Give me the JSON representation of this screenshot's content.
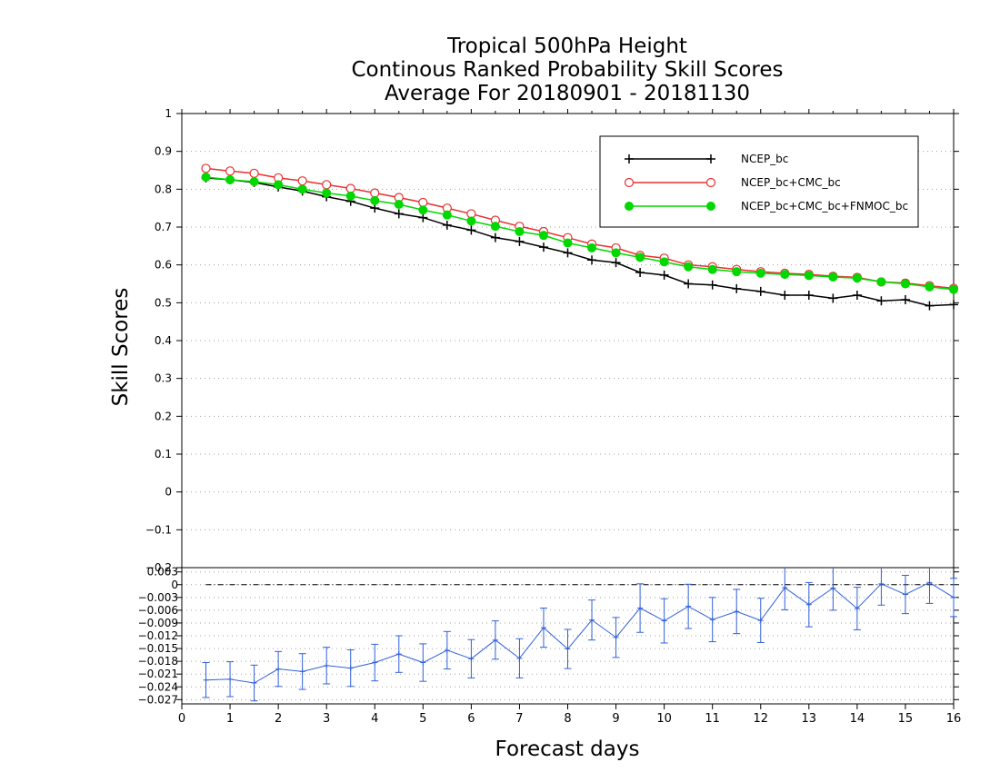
{
  "title_lines": [
    "Tropical 500hPa Height",
    "Continous Ranked Probability Skill Scores",
    "Average For 20180901 - 20181130"
  ],
  "ylabel": "Skill Scores",
  "xlabel": "Forecast days",
  "colors": {
    "NCEP_bc": "#000000",
    "NCEP_bc+CMC_bc": "#e83030",
    "NCEP_bc+CMC_bc+FNMOC_bc": "#00d800",
    "diff": "#3060d8"
  },
  "chart_data": [
    {
      "type": "line",
      "xlim": [
        0,
        16
      ],
      "ylim": [
        -0.2,
        1
      ],
      "x_ticks": [
        "0",
        "1",
        "2",
        "3",
        "4",
        "5",
        "6",
        "7",
        "8",
        "9",
        "10",
        "11",
        "12",
        "13",
        "14",
        "15",
        "16"
      ],
      "y_ticks": [
        "1",
        "0.9",
        "0.8",
        "0.7",
        "0.6",
        "0.5",
        "0.4",
        "0.3",
        "0.2",
        "0.1",
        "0",
        "-0.1",
        "-0.2"
      ],
      "grid": true,
      "legend_position": "top-right",
      "x": [
        0.5,
        1,
        1.5,
        2,
        2.5,
        3,
        3.5,
        4,
        4.5,
        5,
        5.5,
        6,
        6.5,
        7,
        7.5,
        8,
        8.5,
        9,
        9.5,
        10,
        10.5,
        11,
        11.5,
        12,
        12.5,
        13,
        13.5,
        14,
        14.5,
        15,
        15.5,
        16
      ],
      "series": [
        {
          "name": "NCEP_bc",
          "marker": "plus",
          "values": [
            0.83,
            0.825,
            0.818,
            0.806,
            0.795,
            0.78,
            0.768,
            0.75,
            0.735,
            0.725,
            0.705,
            0.692,
            0.672,
            0.662,
            0.647,
            0.632,
            0.613,
            0.606,
            0.58,
            0.573,
            0.55,
            0.547,
            0.537,
            0.53,
            0.52,
            0.52,
            0.512,
            0.52,
            0.505,
            0.508,
            0.492,
            0.495
          ]
        },
        {
          "name": "NCEP_bc+CMC_bc",
          "marker": "open-circle",
          "values": [
            0.855,
            0.848,
            0.842,
            0.83,
            0.822,
            0.812,
            0.802,
            0.79,
            0.778,
            0.765,
            0.75,
            0.735,
            0.718,
            0.702,
            0.688,
            0.672,
            0.655,
            0.645,
            0.625,
            0.618,
            0.6,
            0.595,
            0.588,
            0.582,
            0.578,
            0.575,
            0.57,
            0.567,
            0.555,
            0.552,
            0.545,
            0.538
          ]
        },
        {
          "name": "NCEP_bc+CMC_bc+FNMOC_bc",
          "marker": "filled-circle",
          "values": [
            0.832,
            0.825,
            0.82,
            0.812,
            0.8,
            0.79,
            0.782,
            0.77,
            0.76,
            0.745,
            0.732,
            0.716,
            0.702,
            0.688,
            0.678,
            0.658,
            0.645,
            0.632,
            0.62,
            0.608,
            0.595,
            0.588,
            0.582,
            0.578,
            0.575,
            0.572,
            0.568,
            0.565,
            0.555,
            0.55,
            0.542,
            0.535
          ]
        }
      ]
    },
    {
      "type": "line",
      "xlim": [
        0,
        16
      ],
      "ylim": [
        -0.028,
        0.004
      ],
      "y_ticks": [
        "0.003",
        "0",
        "-0.003",
        "-0.006",
        "-0.009",
        "-0.012",
        "-0.015",
        "-0.018",
        "-0.021",
        "-0.024",
        "-0.027"
      ],
      "reference_line": 0,
      "error_bars": true,
      "x": [
        0.5,
        1,
        1.5,
        2,
        2.5,
        3,
        3.5,
        4,
        4.5,
        5,
        5.5,
        6,
        6.5,
        7,
        7.5,
        8,
        8.5,
        9,
        9.5,
        10,
        10.5,
        11,
        11.5,
        12,
        12.5,
        13,
        13.5,
        14,
        14.5,
        15,
        15.5,
        16
      ],
      "values": [
        -0.0224,
        -0.0222,
        -0.0231,
        -0.0198,
        -0.0204,
        -0.019,
        -0.0196,
        -0.0183,
        -0.0163,
        -0.0183,
        -0.0154,
        -0.0174,
        -0.013,
        -0.0173,
        -0.0101,
        -0.0151,
        -0.0083,
        -0.0124,
        -0.0055,
        -0.0085,
        -0.0051,
        -0.0082,
        -0.0063,
        -0.0084,
        -0.0007,
        -0.0047,
        -0.0008,
        -0.0056,
        0.0002,
        -0.0023,
        0.0005,
        -0.003
      ],
      "err": [
        0.0041,
        0.0041,
        0.0042,
        0.0041,
        0.0042,
        0.0043,
        0.0043,
        0.0043,
        0.0043,
        0.0044,
        0.0044,
        0.0045,
        0.0045,
        0.0046,
        0.0046,
        0.0046,
        0.0047,
        0.0047,
        0.0057,
        0.0052,
        0.0052,
        0.0052,
        0.0052,
        0.0052,
        0.0052,
        0.0052,
        0.0052,
        0.005,
        0.005,
        0.0045,
        0.0049,
        0.0045
      ]
    }
  ]
}
